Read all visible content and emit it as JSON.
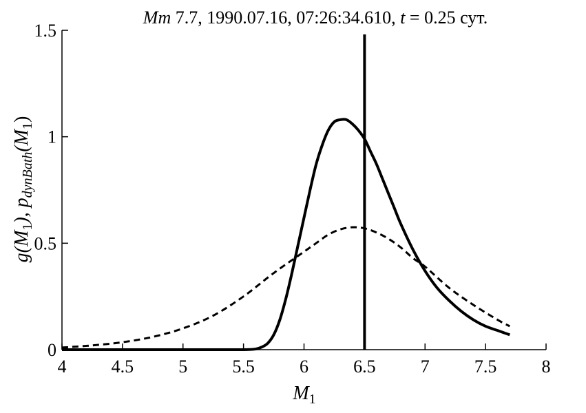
{
  "chart_data": {
    "type": "line",
    "title": {
      "prefix": "Mm",
      "main": " 7.7, 1990.07.16, 07:26:34.610, ",
      "t_symbol": "t",
      "t_value": " = 0.25 сут."
    },
    "xlabel": {
      "base": "M",
      "sub": "1"
    },
    "ylabel": {
      "p1": "g(M",
      "p1sub": "1",
      "p2": "), p",
      "p2sub": "dynBath",
      "p3": "(M",
      "p3sub": "1",
      "p4": ")"
    },
    "xlim": [
      4,
      8
    ],
    "ylim": [
      0,
      1.5
    ],
    "x_ticks": [
      4,
      4.5,
      5,
      5.5,
      6,
      6.5,
      7,
      7.5,
      8
    ],
    "x_tick_labels": [
      "4",
      "4.5",
      "5",
      "5.5",
      "6",
      "6.5",
      "7",
      "7.5",
      "8"
    ],
    "y_ticks": [
      0,
      0.5,
      1,
      1.5
    ],
    "y_tick_labels": [
      "0",
      "0.5",
      "1",
      "1.5"
    ],
    "grid": false,
    "vertical_line_x": 6.5,
    "series": [
      {
        "style": "solid",
        "x": [
          4.0,
          5.2,
          5.5,
          5.6,
          5.65,
          5.7,
          5.75,
          5.8,
          5.85,
          5.9,
          5.95,
          6.0,
          6.05,
          6.1,
          6.15,
          6.2,
          6.25,
          6.3,
          6.35,
          6.4,
          6.45,
          6.5,
          6.55,
          6.6,
          6.65,
          6.7,
          6.75,
          6.8,
          6.9,
          7.0,
          7.1,
          7.2,
          7.3,
          7.4,
          7.5,
          7.6,
          7.7
        ],
        "y": [
          0.0,
          0.0,
          0.0,
          0.003,
          0.012,
          0.03,
          0.07,
          0.14,
          0.24,
          0.36,
          0.49,
          0.62,
          0.75,
          0.87,
          0.96,
          1.03,
          1.07,
          1.08,
          1.08,
          1.06,
          1.03,
          0.99,
          0.93,
          0.87,
          0.8,
          0.73,
          0.66,
          0.59,
          0.47,
          0.37,
          0.29,
          0.23,
          0.18,
          0.14,
          0.11,
          0.09,
          0.07
        ]
      },
      {
        "style": "dashed",
        "x": [
          4.0,
          4.25,
          4.5,
          4.75,
          5.0,
          5.25,
          5.5,
          5.75,
          6.0,
          6.1,
          6.2,
          6.3,
          6.4,
          6.5,
          6.6,
          6.7,
          6.8,
          6.9,
          7.0,
          7.2,
          7.4,
          7.6,
          7.7
        ],
        "y": [
          0.01,
          0.02,
          0.035,
          0.06,
          0.1,
          0.16,
          0.25,
          0.36,
          0.46,
          0.5,
          0.54,
          0.565,
          0.575,
          0.57,
          0.55,
          0.52,
          0.48,
          0.43,
          0.39,
          0.29,
          0.21,
          0.14,
          0.11
        ]
      }
    ]
  }
}
